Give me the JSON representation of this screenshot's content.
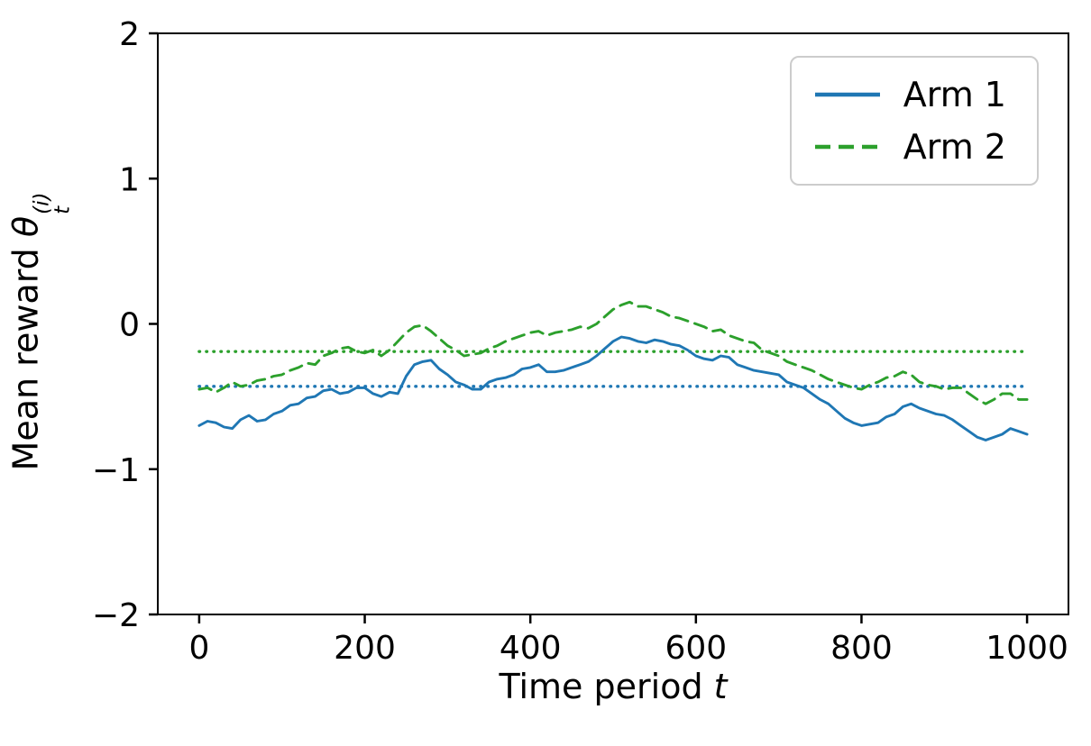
{
  "figure": {
    "background": "#ffffff",
    "ylabel": {
      "prefix": "Mean reward ",
      "symbol": "θ",
      "subscript": "t",
      "superscript": "(i)"
    },
    "xlabel": {
      "prefix": "Time period ",
      "symbol": "t"
    }
  },
  "chart_data": {
    "type": "line",
    "title": "",
    "xlabel": "Time period t",
    "ylabel": "Mean reward theta_t^(i)",
    "xlim": [
      -50,
      1050
    ],
    "ylim": [
      -2,
      2
    ],
    "xticks": [
      0,
      200,
      400,
      600,
      800,
      1000
    ],
    "yticks": [
      2,
      1,
      0,
      -1,
      -2
    ],
    "grid": false,
    "legend_position": "upper right",
    "frame_color": "#000000",
    "x": [
      0,
      10,
      20,
      30,
      40,
      50,
      60,
      70,
      80,
      90,
      100,
      110,
      120,
      130,
      140,
      150,
      160,
      170,
      180,
      190,
      200,
      210,
      220,
      230,
      240,
      250,
      260,
      270,
      280,
      290,
      300,
      310,
      320,
      330,
      340,
      350,
      360,
      370,
      380,
      390,
      400,
      410,
      420,
      430,
      440,
      450,
      460,
      470,
      480,
      490,
      500,
      510,
      520,
      530,
      540,
      550,
      560,
      570,
      580,
      590,
      600,
      610,
      620,
      630,
      640,
      650,
      660,
      670,
      680,
      690,
      700,
      710,
      720,
      730,
      740,
      750,
      760,
      770,
      780,
      790,
      800,
      810,
      820,
      830,
      840,
      850,
      860,
      870,
      880,
      890,
      900,
      910,
      920,
      930,
      940,
      950,
      960,
      970,
      980,
      990,
      1000
    ],
    "series": [
      {
        "name": "Arm 1",
        "color": "#1f77b4",
        "style": "solid",
        "values": [
          -0.7,
          -0.67,
          -0.68,
          -0.71,
          -0.72,
          -0.66,
          -0.63,
          -0.67,
          -0.66,
          -0.62,
          -0.6,
          -0.56,
          -0.55,
          -0.51,
          -0.5,
          -0.46,
          -0.45,
          -0.48,
          -0.47,
          -0.44,
          -0.44,
          -0.48,
          -0.5,
          -0.47,
          -0.48,
          -0.36,
          -0.28,
          -0.26,
          -0.25,
          -0.31,
          -0.35,
          -0.4,
          -0.42,
          -0.45,
          -0.45,
          -0.4,
          -0.38,
          -0.37,
          -0.35,
          -0.31,
          -0.3,
          -0.28,
          -0.33,
          -0.33,
          -0.32,
          -0.3,
          -0.28,
          -0.26,
          -0.22,
          -0.17,
          -0.12,
          -0.09,
          -0.1,
          -0.12,
          -0.13,
          -0.11,
          -0.12,
          -0.14,
          -0.15,
          -0.18,
          -0.22,
          -0.24,
          -0.25,
          -0.22,
          -0.23,
          -0.28,
          -0.3,
          -0.32,
          -0.33,
          -0.34,
          -0.35,
          -0.4,
          -0.42,
          -0.44,
          -0.48,
          -0.52,
          -0.55,
          -0.6,
          -0.65,
          -0.68,
          -0.7,
          -0.69,
          -0.68,
          -0.64,
          -0.62,
          -0.57,
          -0.55,
          -0.58,
          -0.6,
          -0.62,
          -0.63,
          -0.66,
          -0.7,
          -0.74,
          -0.78,
          -0.8,
          -0.78,
          -0.76,
          -0.72,
          -0.74,
          -0.76
        ]
      },
      {
        "name": "Arm 2",
        "color": "#2ca02c",
        "style": "dashed",
        "values": [
          -0.45,
          -0.44,
          -0.47,
          -0.44,
          -0.4,
          -0.43,
          -0.42,
          -0.39,
          -0.38,
          -0.36,
          -0.35,
          -0.32,
          -0.3,
          -0.27,
          -0.28,
          -0.22,
          -0.2,
          -0.17,
          -0.16,
          -0.19,
          -0.2,
          -0.18,
          -0.22,
          -0.18,
          -0.12,
          -0.06,
          -0.02,
          -0.01,
          -0.05,
          -0.1,
          -0.15,
          -0.18,
          -0.22,
          -0.21,
          -0.2,
          -0.17,
          -0.15,
          -0.12,
          -0.1,
          -0.08,
          -0.06,
          -0.05,
          -0.08,
          -0.06,
          -0.05,
          -0.04,
          -0.02,
          -0.03,
          0.0,
          0.05,
          0.1,
          0.13,
          0.15,
          0.12,
          0.12,
          0.1,
          0.08,
          0.05,
          0.04,
          0.02,
          0.0,
          -0.02,
          -0.05,
          -0.04,
          -0.08,
          -0.1,
          -0.12,
          -0.13,
          -0.18,
          -0.2,
          -0.22,
          -0.26,
          -0.28,
          -0.3,
          -0.32,
          -0.35,
          -0.38,
          -0.4,
          -0.42,
          -0.44,
          -0.45,
          -0.42,
          -0.4,
          -0.37,
          -0.36,
          -0.33,
          -0.35,
          -0.4,
          -0.42,
          -0.43,
          -0.45,
          -0.44,
          -0.44,
          -0.48,
          -0.52,
          -0.55,
          -0.52,
          -0.48,
          -0.48,
          -0.52,
          -0.52
        ]
      }
    ],
    "mean_lines": [
      {
        "name": "arm-1-mean",
        "color": "#1f77b4",
        "style": "dotted",
        "value": -0.43
      },
      {
        "name": "arm-2-mean",
        "color": "#2ca02c",
        "style": "dotted",
        "value": -0.19
      }
    ]
  }
}
